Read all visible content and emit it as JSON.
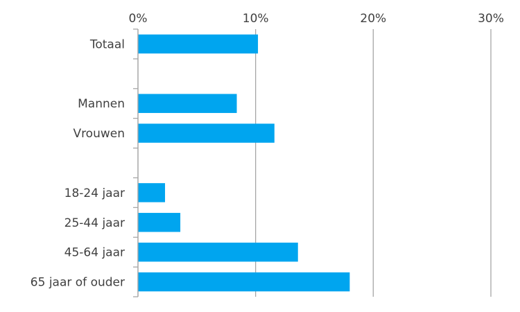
{
  "chart_data": {
    "type": "bar",
    "orientation": "horizontal",
    "categories": [
      "Totaal",
      "",
      "Mannen",
      "Vrouwen",
      "",
      "18-24 jaar",
      "25-44 jaar",
      "45-64 jaar",
      "65 jaar of ouder"
    ],
    "values": [
      10.2,
      null,
      8.4,
      11.6,
      null,
      2.3,
      3.6,
      13.6,
      18.0
    ],
    "xlim": [
      0,
      30
    ],
    "xticks": [
      "0%",
      "10%",
      "20%",
      "30%"
    ],
    "xtick_values": [
      0,
      10,
      20,
      30
    ],
    "axis_position": "top",
    "grid": true,
    "title": "",
    "xlabel": "",
    "ylabel": "",
    "bar_color": "#00a5ef",
    "grid_color": "#a6a6a6",
    "text_color": "#404040"
  }
}
